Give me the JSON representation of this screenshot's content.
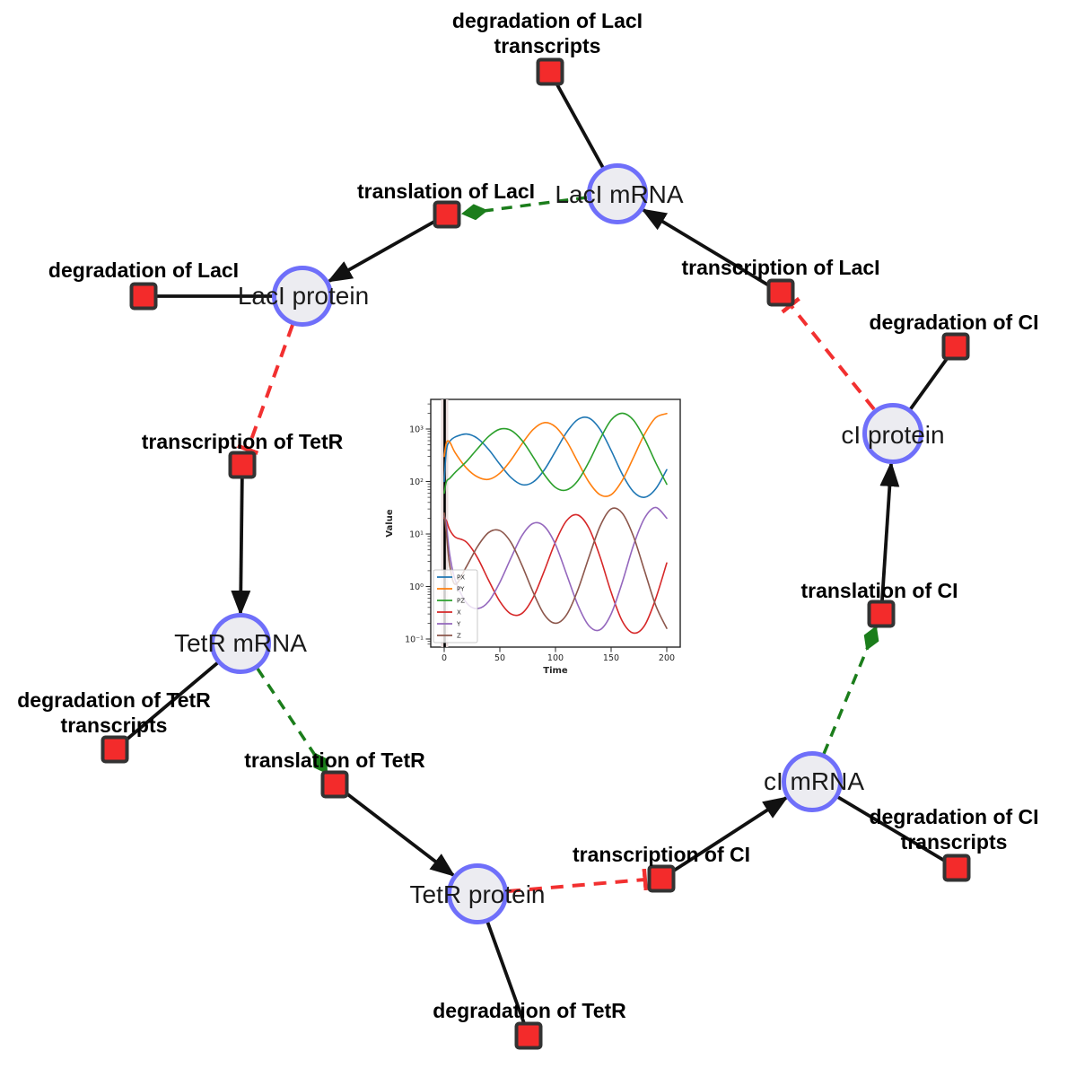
{
  "diagram": {
    "title": "repressilator reaction network",
    "style": {
      "species_fill": "#ececf1",
      "species_border": "#6f6ffa",
      "reaction_fill": "#f32b2b",
      "reaction_border": "#333333",
      "edge_color": "#111111",
      "modifier_edge_color": "#1b7d1b",
      "inhibition_edge_color": "#f23030"
    },
    "species": [
      {
        "label": "LacI mRNA"
      },
      {
        "label": "LacI protein"
      },
      {
        "label": "cI protein"
      },
      {
        "label": "TetR mRNA"
      },
      {
        "label": "cI mRNA"
      },
      {
        "label": "TetR protein"
      }
    ],
    "reactions": [
      {
        "lines": [
          "degradation of LacI",
          "transcripts"
        ]
      },
      {
        "lines": [
          "translation of LacI"
        ]
      },
      {
        "lines": [
          "transcription of LacI"
        ]
      },
      {
        "lines": [
          "degradation of LacI"
        ]
      },
      {
        "lines": [
          "degradation of CI"
        ]
      },
      {
        "lines": [
          "transcription of TetR"
        ]
      },
      {
        "lines": [
          "degradation of TetR",
          "transcripts"
        ]
      },
      {
        "lines": [
          "translation of TetR"
        ]
      },
      {
        "lines": [
          "degradation of TetR"
        ]
      },
      {
        "lines": [
          "transcription of CI"
        ]
      },
      {
        "lines": [
          "degradation of CI",
          "transcripts"
        ]
      },
      {
        "lines": [
          "translation of CI"
        ]
      }
    ],
    "edges": [
      {
        "from": "LacI mRNA",
        "to": "degradation of LacI transcripts",
        "type": "line"
      },
      {
        "from": "transcription of LacI",
        "to": "LacI mRNA",
        "type": "arrow"
      },
      {
        "from": "LacI mRNA",
        "to": "translation of LacI",
        "type": "modifier"
      },
      {
        "from": "translation of LacI",
        "to": "LacI protein",
        "type": "arrow"
      },
      {
        "from": "LacI protein",
        "to": "degradation of LacI",
        "type": "line"
      },
      {
        "from": "LacI protein",
        "to": "transcription of TetR",
        "type": "inhibition"
      },
      {
        "from": "transcription of TetR",
        "to": "TetR mRNA",
        "type": "arrow"
      },
      {
        "from": "TetR mRNA",
        "to": "degradation of TetR transcripts",
        "type": "line"
      },
      {
        "from": "TetR mRNA",
        "to": "translation of TetR",
        "type": "modifier"
      },
      {
        "from": "translation of TetR",
        "to": "TetR protein",
        "type": "arrow"
      },
      {
        "from": "TetR protein",
        "to": "degradation of TetR",
        "type": "line"
      },
      {
        "from": "TetR protein",
        "to": "transcription of CI",
        "type": "inhibition"
      },
      {
        "from": "transcription of CI",
        "to": "cI mRNA",
        "type": "arrow"
      },
      {
        "from": "cI mRNA",
        "to": "degradation of CI transcripts",
        "type": "line"
      },
      {
        "from": "cI mRNA",
        "to": "translation of CI",
        "type": "modifier"
      },
      {
        "from": "translation of CI",
        "to": "cI protein",
        "type": "arrow"
      },
      {
        "from": "cI protein",
        "to": "degradation of CI",
        "type": "line"
      },
      {
        "from": "cI protein",
        "to": "transcription of LacI",
        "type": "inhibition"
      }
    ]
  },
  "chart_data": {
    "type": "line",
    "title": "",
    "xlabel": "Time",
    "ylabel": "Value",
    "y_scale": "log",
    "xlim": [
      -10,
      210
    ],
    "ylim": [
      0.07,
      3600
    ],
    "xticklabels": [
      "0",
      "50",
      "100",
      "150",
      "200"
    ],
    "xtick_values": [
      0,
      50,
      100,
      150,
      200
    ],
    "yticklabels": [
      "10⁻¹",
      "10⁰",
      "10¹",
      "10²",
      "10³"
    ],
    "ytick_values": [
      0.1,
      1,
      10,
      100,
      1000
    ],
    "vline_x": 0,
    "legend_position": "lower left",
    "grid": false,
    "x": [
      0,
      2,
      5,
      10,
      20,
      30,
      40,
      50,
      60,
      70,
      80,
      90,
      100,
      110,
      120,
      130,
      140,
      150,
      160,
      170,
      180,
      190,
      200
    ],
    "series": [
      {
        "name": "PX",
        "color": "#1f77b4",
        "values": [
          100,
          400,
          580,
          706,
          801,
          661,
          406,
          213,
          119,
          87,
          98,
          167,
          377,
          865,
          1510,
          1620,
          989,
          392,
          138,
          64,
          50,
          72,
          168
        ]
      },
      {
        "name": "PY",
        "color": "#ff7f0e",
        "values": [
          300,
          550,
          560,
          350,
          180,
          122,
          110,
          144,
          256,
          527,
          984,
          1320,
          1100,
          588,
          238,
          98,
          56,
          56,
          105,
          284,
          794,
          1640,
          1970
        ]
      },
      {
        "name": "PZ",
        "color": "#2ca02c",
        "values": [
          60,
          100,
          115,
          150,
          241,
          423,
          724,
          993,
          941,
          603,
          292,
          135,
          77,
          69,
          103,
          235,
          638,
          1480,
          2000,
          1480,
          656,
          230,
          89
        ]
      },
      {
        "name": "X",
        "color": "#d62728",
        "values": [
          20,
          18,
          12,
          8.7,
          7.0,
          3.5,
          1.3,
          0.52,
          0.3,
          0.31,
          0.62,
          2.0,
          7.1,
          18,
          23,
          13,
          3.7,
          0.78,
          0.22,
          0.13,
          0.18,
          0.58,
          2.8
        ]
      },
      {
        "name": "Y",
        "color": "#9467bd",
        "values": [
          22,
          15,
          4,
          1.3,
          0.49,
          0.38,
          0.52,
          1.2,
          3.5,
          9.4,
          16,
          14,
          6.3,
          1.7,
          0.45,
          0.18,
          0.15,
          0.3,
          1.2,
          6.0,
          20,
          32,
          20
        ]
      },
      {
        "name": "Z",
        "color": "#8c564b",
        "values": [
          25,
          10,
          2.5,
          1.1,
          2.4,
          5.8,
          10.7,
          11.6,
          6.9,
          2.5,
          0.77,
          0.29,
          0.2,
          0.29,
          0.85,
          3.6,
          14,
          30,
          25,
          9.1,
          2.0,
          0.44,
          0.16
        ]
      }
    ]
  }
}
